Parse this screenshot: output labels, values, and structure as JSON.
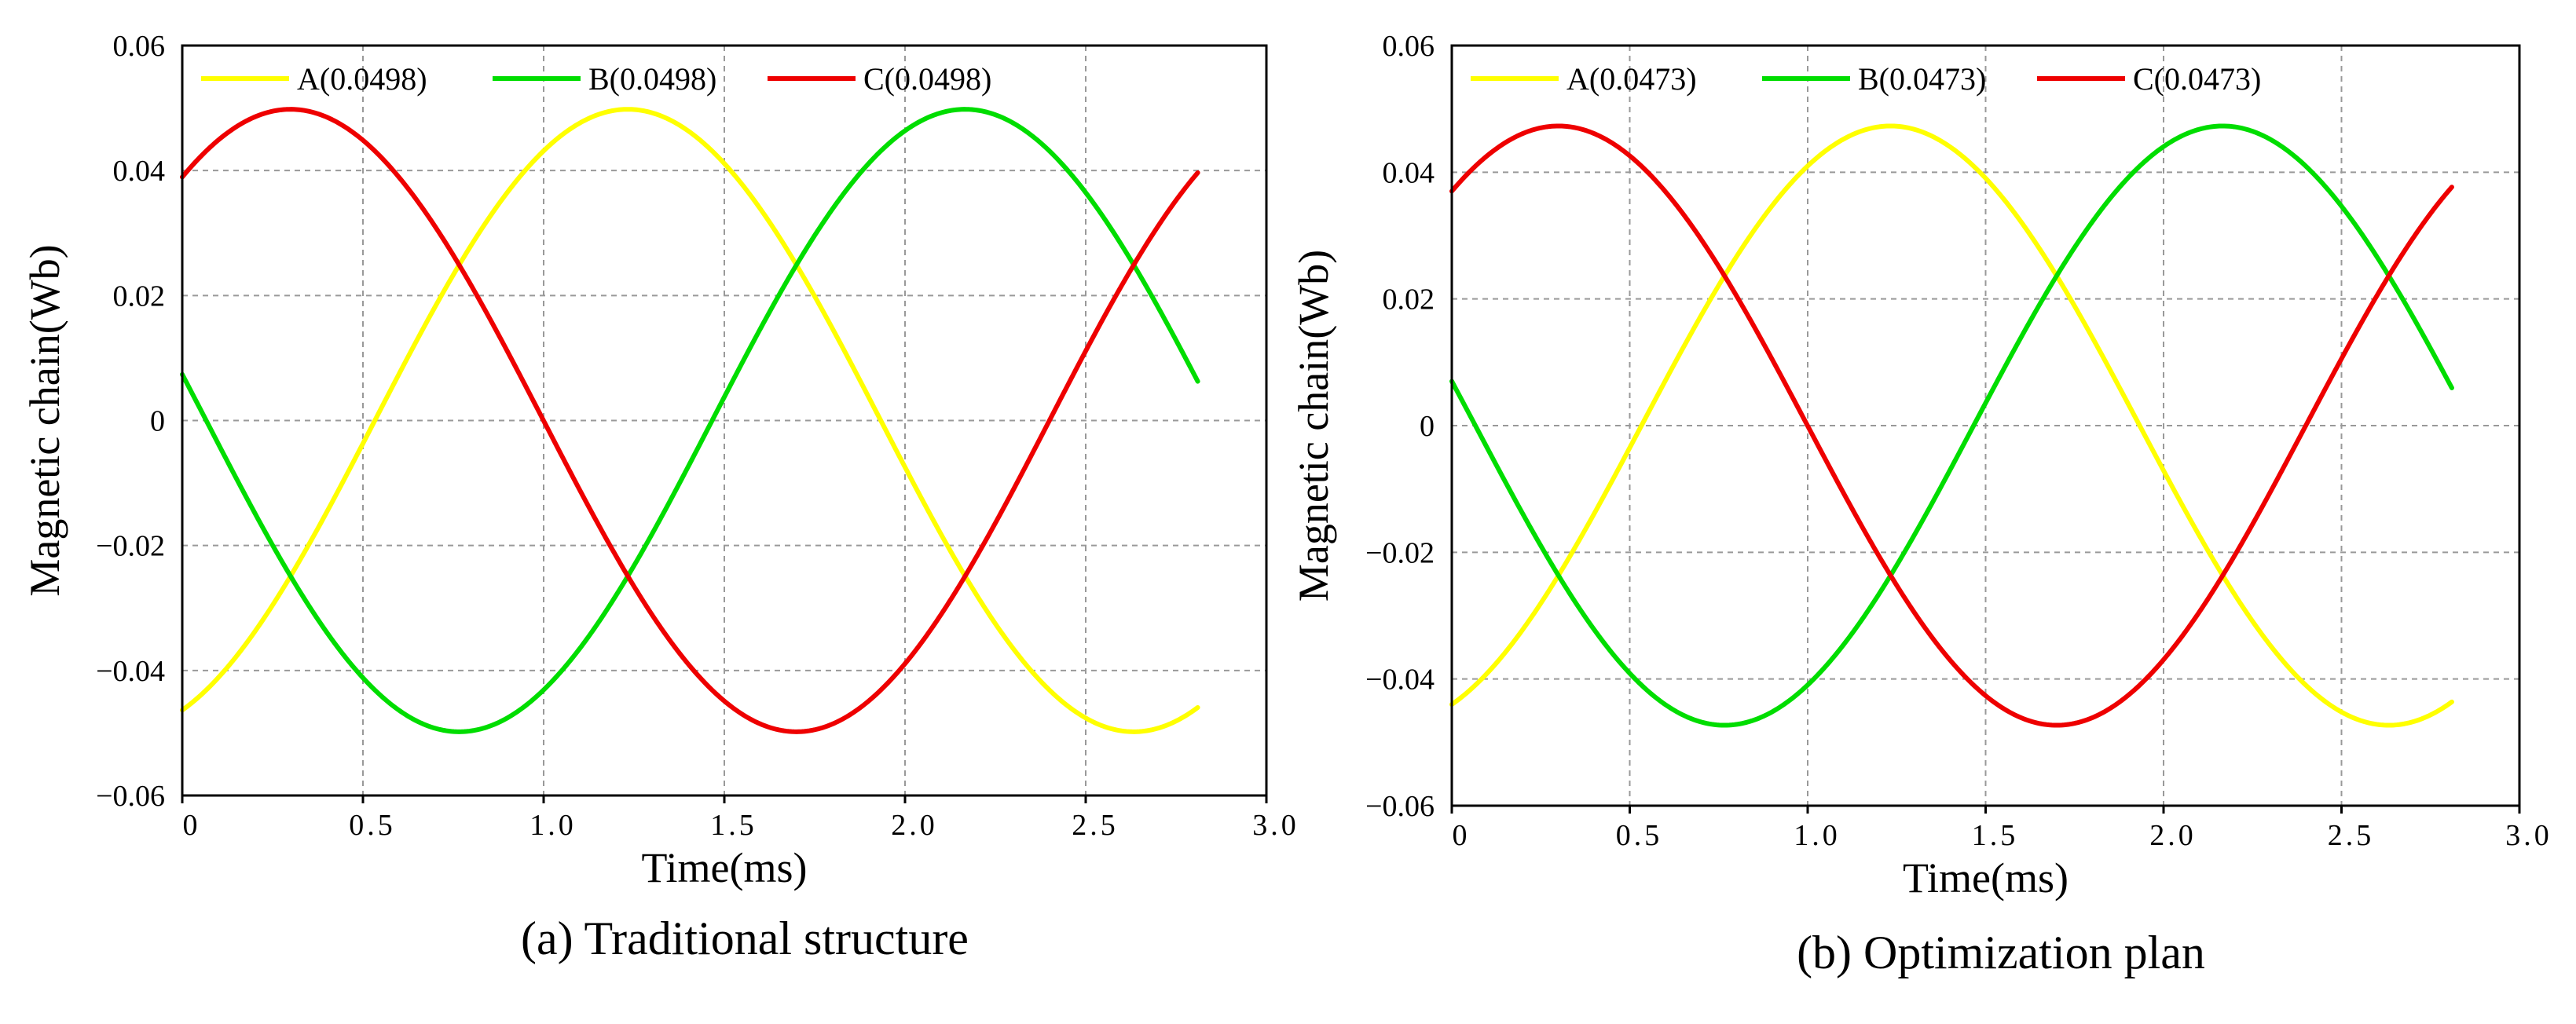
{
  "chart_data": [
    {
      "type": "line",
      "id": "a",
      "caption": "(a) Traditional structure",
      "xlabel": "Time(ms)",
      "ylabel": "Magnetic chain(Wb)",
      "xlim": [
        0,
        3.0
      ],
      "ylim": [
        -0.06,
        0.06
      ],
      "x_ticks": [
        "0",
        "0.5",
        "1.0",
        "1.5",
        "2.0",
        "2.5",
        "3.0"
      ],
      "y_ticks": [
        "0.06",
        "0.04",
        "0.02",
        "0",
        "−0.02",
        "−0.04",
        "−0.06"
      ],
      "grid": true,
      "legend_position": "top",
      "amplitude": 0.0498,
      "x_end": 2.81,
      "period_ms": 2.8,
      "series": [
        {
          "name": "A(0.0498)",
          "color": "#ffff00",
          "phase_deg": -120
        },
        {
          "name": "B(0.0498)",
          "color": "#00dd00",
          "phase_deg": 120
        },
        {
          "name": "C(0.0498)",
          "color": "#ee0000",
          "phase_deg": 0
        }
      ]
    },
    {
      "type": "line",
      "id": "b",
      "caption": "(b) Optimization plan",
      "xlabel": "Time(ms)",
      "ylabel": "Magnetic chain(Wb)",
      "xlim": [
        0,
        3.0
      ],
      "ylim": [
        -0.06,
        0.06
      ],
      "x_ticks": [
        "0",
        "0.5",
        "1.0",
        "1.5",
        "2.0",
        "2.5",
        "3.0"
      ],
      "y_ticks": [
        "0.06",
        "0.04",
        "0.02",
        "0",
        "−0.02",
        "−0.04",
        "−0.06"
      ],
      "grid": true,
      "legend_position": "top",
      "amplitude": 0.0473,
      "x_end": 2.81,
      "period_ms": 2.8,
      "series": [
        {
          "name": "A(0.0473)",
          "color": "#ffff00",
          "phase_deg": -120
        },
        {
          "name": "B(0.0473)",
          "color": "#00dd00",
          "phase_deg": 120
        },
        {
          "name": "C(0.0473)",
          "color": "#ee0000",
          "phase_deg": 0
        }
      ]
    }
  ]
}
